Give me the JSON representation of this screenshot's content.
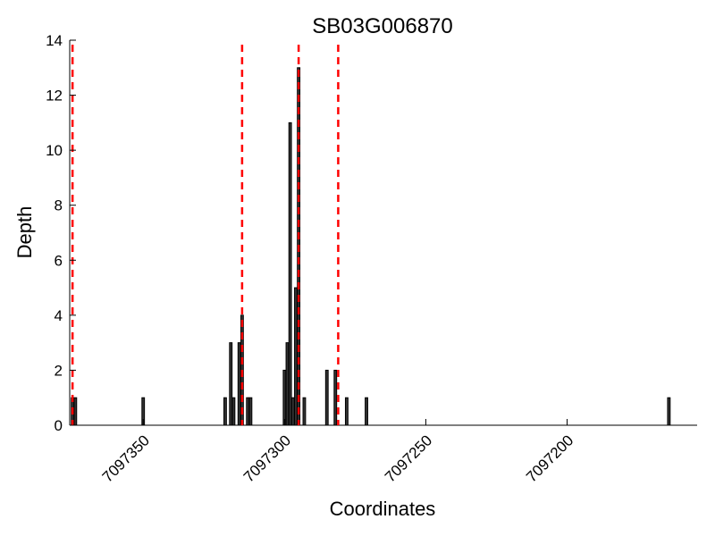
{
  "chart_data": {
    "type": "bar",
    "title": "SB03G006870",
    "xlabel": "Coordinates",
    "ylabel": "Depth",
    "x_axis_reversed": true,
    "xlim": [
      7097376,
      7097154
    ],
    "ylim": [
      0,
      14
    ],
    "x_ticks": [
      7097350,
      7097300,
      7097250,
      7097200
    ],
    "y_ticks": [
      0,
      2,
      4,
      6,
      8,
      10,
      12,
      14
    ],
    "bar_color": "#333333",
    "bars": [
      {
        "x": 7097375,
        "value": 1
      },
      {
        "x": 7097374,
        "value": 1
      },
      {
        "x": 7097350,
        "value": 1
      },
      {
        "x": 7097321,
        "value": 1
      },
      {
        "x": 7097319,
        "value": 3
      },
      {
        "x": 7097318,
        "value": 1
      },
      {
        "x": 7097316,
        "value": 3
      },
      {
        "x": 7097315,
        "value": 4
      },
      {
        "x": 7097313,
        "value": 1
      },
      {
        "x": 7097312,
        "value": 1
      },
      {
        "x": 7097300,
        "value": 2
      },
      {
        "x": 7097299,
        "value": 3
      },
      {
        "x": 7097298,
        "value": 11
      },
      {
        "x": 7097297,
        "value": 1
      },
      {
        "x": 7097296,
        "value": 5
      },
      {
        "x": 7097295,
        "value": 13
      },
      {
        "x": 7097293,
        "value": 1
      },
      {
        "x": 7097285,
        "value": 2
      },
      {
        "x": 7097282,
        "value": 2
      },
      {
        "x": 7097278,
        "value": 1
      },
      {
        "x": 7097271,
        "value": 1
      },
      {
        "x": 7097164,
        "value": 1
      }
    ],
    "vlines": {
      "color": "#ff0000",
      "style": "dashed",
      "x": [
        7097375,
        7097315,
        7097295,
        7097281
      ]
    },
    "grid": false
  }
}
